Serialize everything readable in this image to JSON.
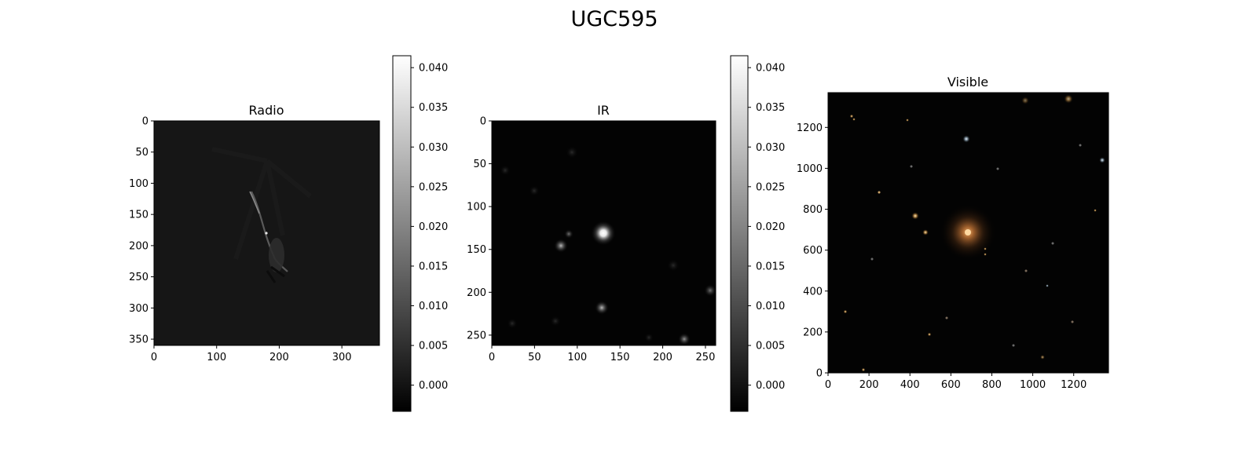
{
  "figure": {
    "title": "UGC595"
  },
  "chart_data": [
    {
      "type": "heatmap",
      "title": "Radio",
      "colormap": "gray",
      "xlim": [
        0,
        360
      ],
      "ylim": [
        360,
        0
      ],
      "y_inverted": true,
      "x_ticks": [
        "0",
        "100",
        "200",
        "300"
      ],
      "y_ticks": [
        "0",
        "50",
        "100",
        "150",
        "200",
        "250",
        "300",
        "350"
      ],
      "colorbar": {
        "range": [
          -0.0033,
          0.0415
        ],
        "ticks": [
          "0.000",
          "0.005",
          "0.010",
          "0.015",
          "0.020",
          "0.025",
          "0.030",
          "0.035",
          "0.040"
        ]
      }
    },
    {
      "type": "heatmap",
      "title": "IR",
      "colormap": "gray",
      "xlim": [
        0,
        262
      ],
      "ylim": [
        262,
        0
      ],
      "y_inverted": true,
      "x_ticks": [
        "0",
        "50",
        "100",
        "150",
        "200",
        "250"
      ],
      "y_ticks": [
        "0",
        "50",
        "100",
        "150",
        "200",
        "250"
      ],
      "colorbar": {
        "range": [
          -0.0033,
          0.0415
        ],
        "ticks": [
          "0.000",
          "0.005",
          "0.010",
          "0.015",
          "0.020",
          "0.025",
          "0.030",
          "0.035",
          "0.040"
        ]
      }
    },
    {
      "type": "heatmap",
      "title": "Visible",
      "colormap": "rgb",
      "xlim": [
        0,
        1370
      ],
      "ylim": [
        0,
        1370
      ],
      "y_inverted": false,
      "x_ticks": [
        "0",
        "200",
        "400",
        "600",
        "800",
        "1000",
        "1200"
      ],
      "y_ticks": [
        "0",
        "200",
        "400",
        "600",
        "800",
        "1000",
        "1200"
      ]
    }
  ]
}
